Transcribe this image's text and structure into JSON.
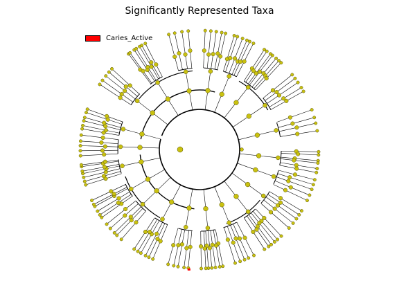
{
  "title": "Significantly Represented Taxa",
  "legend": [
    {
      "label": "Caries_Active",
      "color": "#ff0000"
    }
  ],
  "colors": {
    "node_fill": "#c9c110",
    "node_stroke": "#55520a",
    "highlight": "#ff0000",
    "edge": "#000000"
  },
  "tree": {
    "type": "circular-cladogram",
    "levels": 6,
    "highlighted_clades": 1,
    "branches": [
      [
        -165,
        6
      ],
      [
        -142,
        5
      ],
      [
        -122,
        7
      ],
      [
        -100,
        4
      ],
      [
        -82,
        5
      ],
      [
        -68,
        6
      ],
      [
        -52,
        7
      ],
      [
        -34,
        5
      ],
      [
        -14,
        4
      ],
      [
        6,
        6
      ],
      [
        20,
        5
      ],
      [
        36,
        5
      ],
      [
        52,
        6
      ],
      [
        68,
        5
      ],
      [
        84,
        7
      ],
      [
        100,
        5
      ],
      [
        118,
        6
      ],
      [
        136,
        5
      ],
      [
        150,
        6
      ],
      [
        168,
        7
      ],
      [
        182,
        5
      ]
    ]
  }
}
